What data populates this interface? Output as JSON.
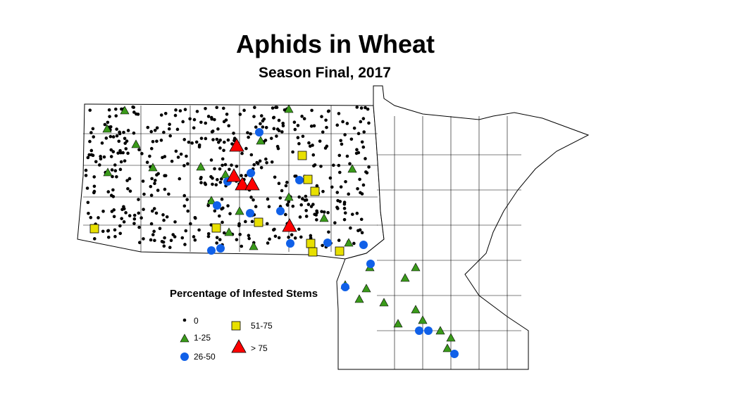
{
  "title": "Aphids in Wheat",
  "subtitle": "Season Final, 2017",
  "legend": {
    "title": "Percentage of Infested Stems",
    "items": [
      {
        "label": "0",
        "symbol": "small-dot",
        "color": "#000000"
      },
      {
        "label": "1-25",
        "symbol": "triangle",
        "color": "#3a9a1a"
      },
      {
        "label": "26-50",
        "symbol": "circle",
        "color": "#1060e8"
      },
      {
        "label": "51-75",
        "symbol": "square",
        "color": "#e8e000"
      },
      {
        "label": "> 75",
        "symbol": "large-triangle",
        "color": "#ff0000"
      }
    ]
  }
}
